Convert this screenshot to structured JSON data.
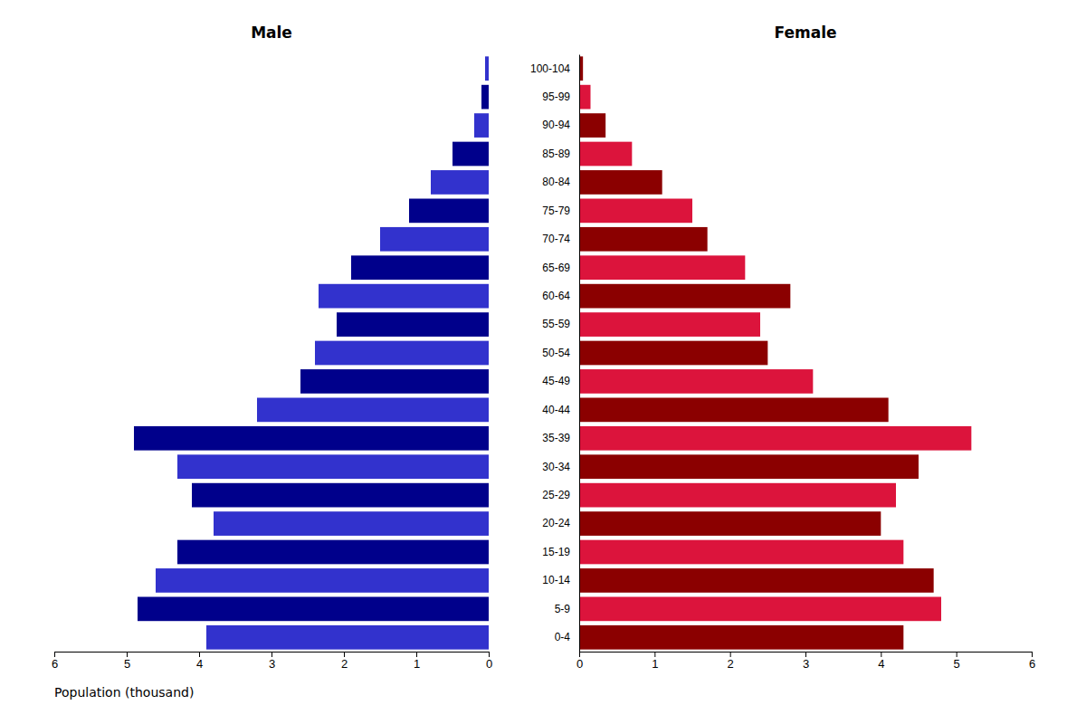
{
  "chart_data": {
    "type": "pyramid",
    "orientation": "horizontal",
    "x_label": "Population (thousand)",
    "categories": [
      "0-4",
      "5-9",
      "10-14",
      "15-19",
      "20-24",
      "25-29",
      "30-34",
      "35-39",
      "40-44",
      "45-49",
      "50-54",
      "55-59",
      "60-64",
      "65-69",
      "70-74",
      "75-79",
      "80-84",
      "85-89",
      "90-94",
      "95-99",
      "100-104"
    ],
    "series": [
      {
        "name": "Male",
        "values": [
          3.9,
          4.85,
          4.6,
          4.3,
          3.8,
          4.1,
          4.3,
          4.9,
          3.2,
          2.6,
          2.4,
          2.1,
          2.35,
          1.9,
          1.5,
          1.1,
          0.8,
          0.5,
          0.2,
          0.1,
          0.05
        ],
        "colors": [
          "#3232CD",
          "#00008B",
          "#3232CD",
          "#00008B",
          "#3232CD",
          "#00008B",
          "#3232CD",
          "#00008B",
          "#3232CD",
          "#00008B",
          "#3232CD",
          "#00008B",
          "#3232CD",
          "#00008B",
          "#3232CD",
          "#00008B",
          "#3232CD",
          "#00008B",
          "#3232CD",
          "#00008B",
          "#3232CD"
        ]
      },
      {
        "name": "Female",
        "values": [
          4.3,
          4.8,
          4.7,
          4.3,
          4.0,
          4.2,
          4.5,
          5.2,
          4.1,
          3.1,
          2.5,
          2.4,
          2.8,
          2.2,
          1.7,
          1.5,
          1.1,
          0.7,
          0.35,
          0.15,
          0.05
        ],
        "colors": [
          "#8B0000",
          "#DC143C",
          "#8B0000",
          "#DC143C",
          "#8B0000",
          "#DC143C",
          "#8B0000",
          "#DC143C",
          "#8B0000",
          "#DC143C",
          "#8B0000",
          "#DC143C",
          "#8B0000",
          "#DC143C",
          "#8B0000",
          "#DC143C",
          "#8B0000",
          "#DC143C",
          "#8B0000",
          "#DC143C",
          "#8B0000"
        ]
      }
    ],
    "xlim": [
      0,
      6
    ],
    "xticks": [
      0,
      1,
      2,
      3,
      4,
      5,
      6
    ]
  }
}
